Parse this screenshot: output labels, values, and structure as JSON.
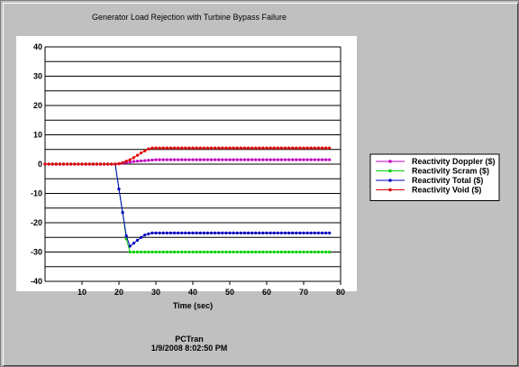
{
  "chart_data": {
    "type": "line",
    "title": "Generator Load Rejection with Turbine Bypass Failure",
    "xlabel": "Time (sec)",
    "ylabel": "",
    "xlim": [
      0,
      80
    ],
    "ylim": [
      -40,
      40
    ],
    "xticks": [
      10,
      20,
      30,
      40,
      50,
      60,
      70,
      80
    ],
    "yticks": [
      40,
      30,
      20,
      10,
      0,
      -10,
      -20,
      -30,
      -40
    ],
    "grid": "horizontal",
    "legend_position": "right",
    "series": [
      {
        "name": "Reactivity Doppler ($)",
        "color": "#c000c0",
        "x": [
          0,
          10,
          19,
          20,
          21,
          22,
          23,
          24,
          25,
          26,
          27,
          28,
          29,
          30,
          40,
          50,
          60,
          70,
          77
        ],
        "y": [
          0,
          0,
          0,
          0.1,
          0.3,
          0.5,
          0.7,
          0.9,
          1.0,
          1.1,
          1.2,
          1.3,
          1.4,
          1.5,
          1.5,
          1.5,
          1.5,
          1.5,
          1.5
        ]
      },
      {
        "name": "Reactivity Scram ($)",
        "color": "#00d000",
        "x": [
          0,
          10,
          19,
          20,
          21,
          22,
          23,
          24,
          30,
          40,
          50,
          60,
          70,
          77
        ],
        "y": [
          0,
          0,
          0,
          -8.5,
          -16.5,
          -25.5,
          -30,
          -30,
          -30,
          -30,
          -30,
          -30,
          -30,
          -30
        ]
      },
      {
        "name": "Reactivity Total ($)",
        "color": "#0000c0",
        "x": [
          0,
          10,
          19,
          20,
          21,
          22,
          23,
          24,
          25,
          26,
          27,
          28,
          29,
          30,
          40,
          50,
          60,
          70,
          77
        ],
        "y": [
          0,
          0,
          0,
          -8.5,
          -16.5,
          -24.5,
          -28,
          -27,
          -26,
          -25,
          -24.2,
          -23.8,
          -23.5,
          -23.5,
          -23.5,
          -23.5,
          -23.5,
          -23.5,
          -23.5
        ]
      },
      {
        "name": "Reactivity Void ($)",
        "color": "#e00000",
        "x": [
          0,
          10,
          19,
          20,
          21,
          22,
          23,
          24,
          25,
          26,
          27,
          28,
          29,
          30,
          40,
          50,
          60,
          70,
          77
        ],
        "y": [
          0,
          0,
          0,
          0.2,
          0.5,
          1.0,
          1.5,
          2.2,
          3.0,
          3.8,
          4.5,
          5.2,
          5.5,
          5.5,
          5.5,
          5.5,
          5.5,
          5.5,
          5.5
        ]
      }
    ]
  },
  "footer": {
    "line1": "PCTran",
    "line2": "1/9/2008 8:02:50 PM"
  }
}
